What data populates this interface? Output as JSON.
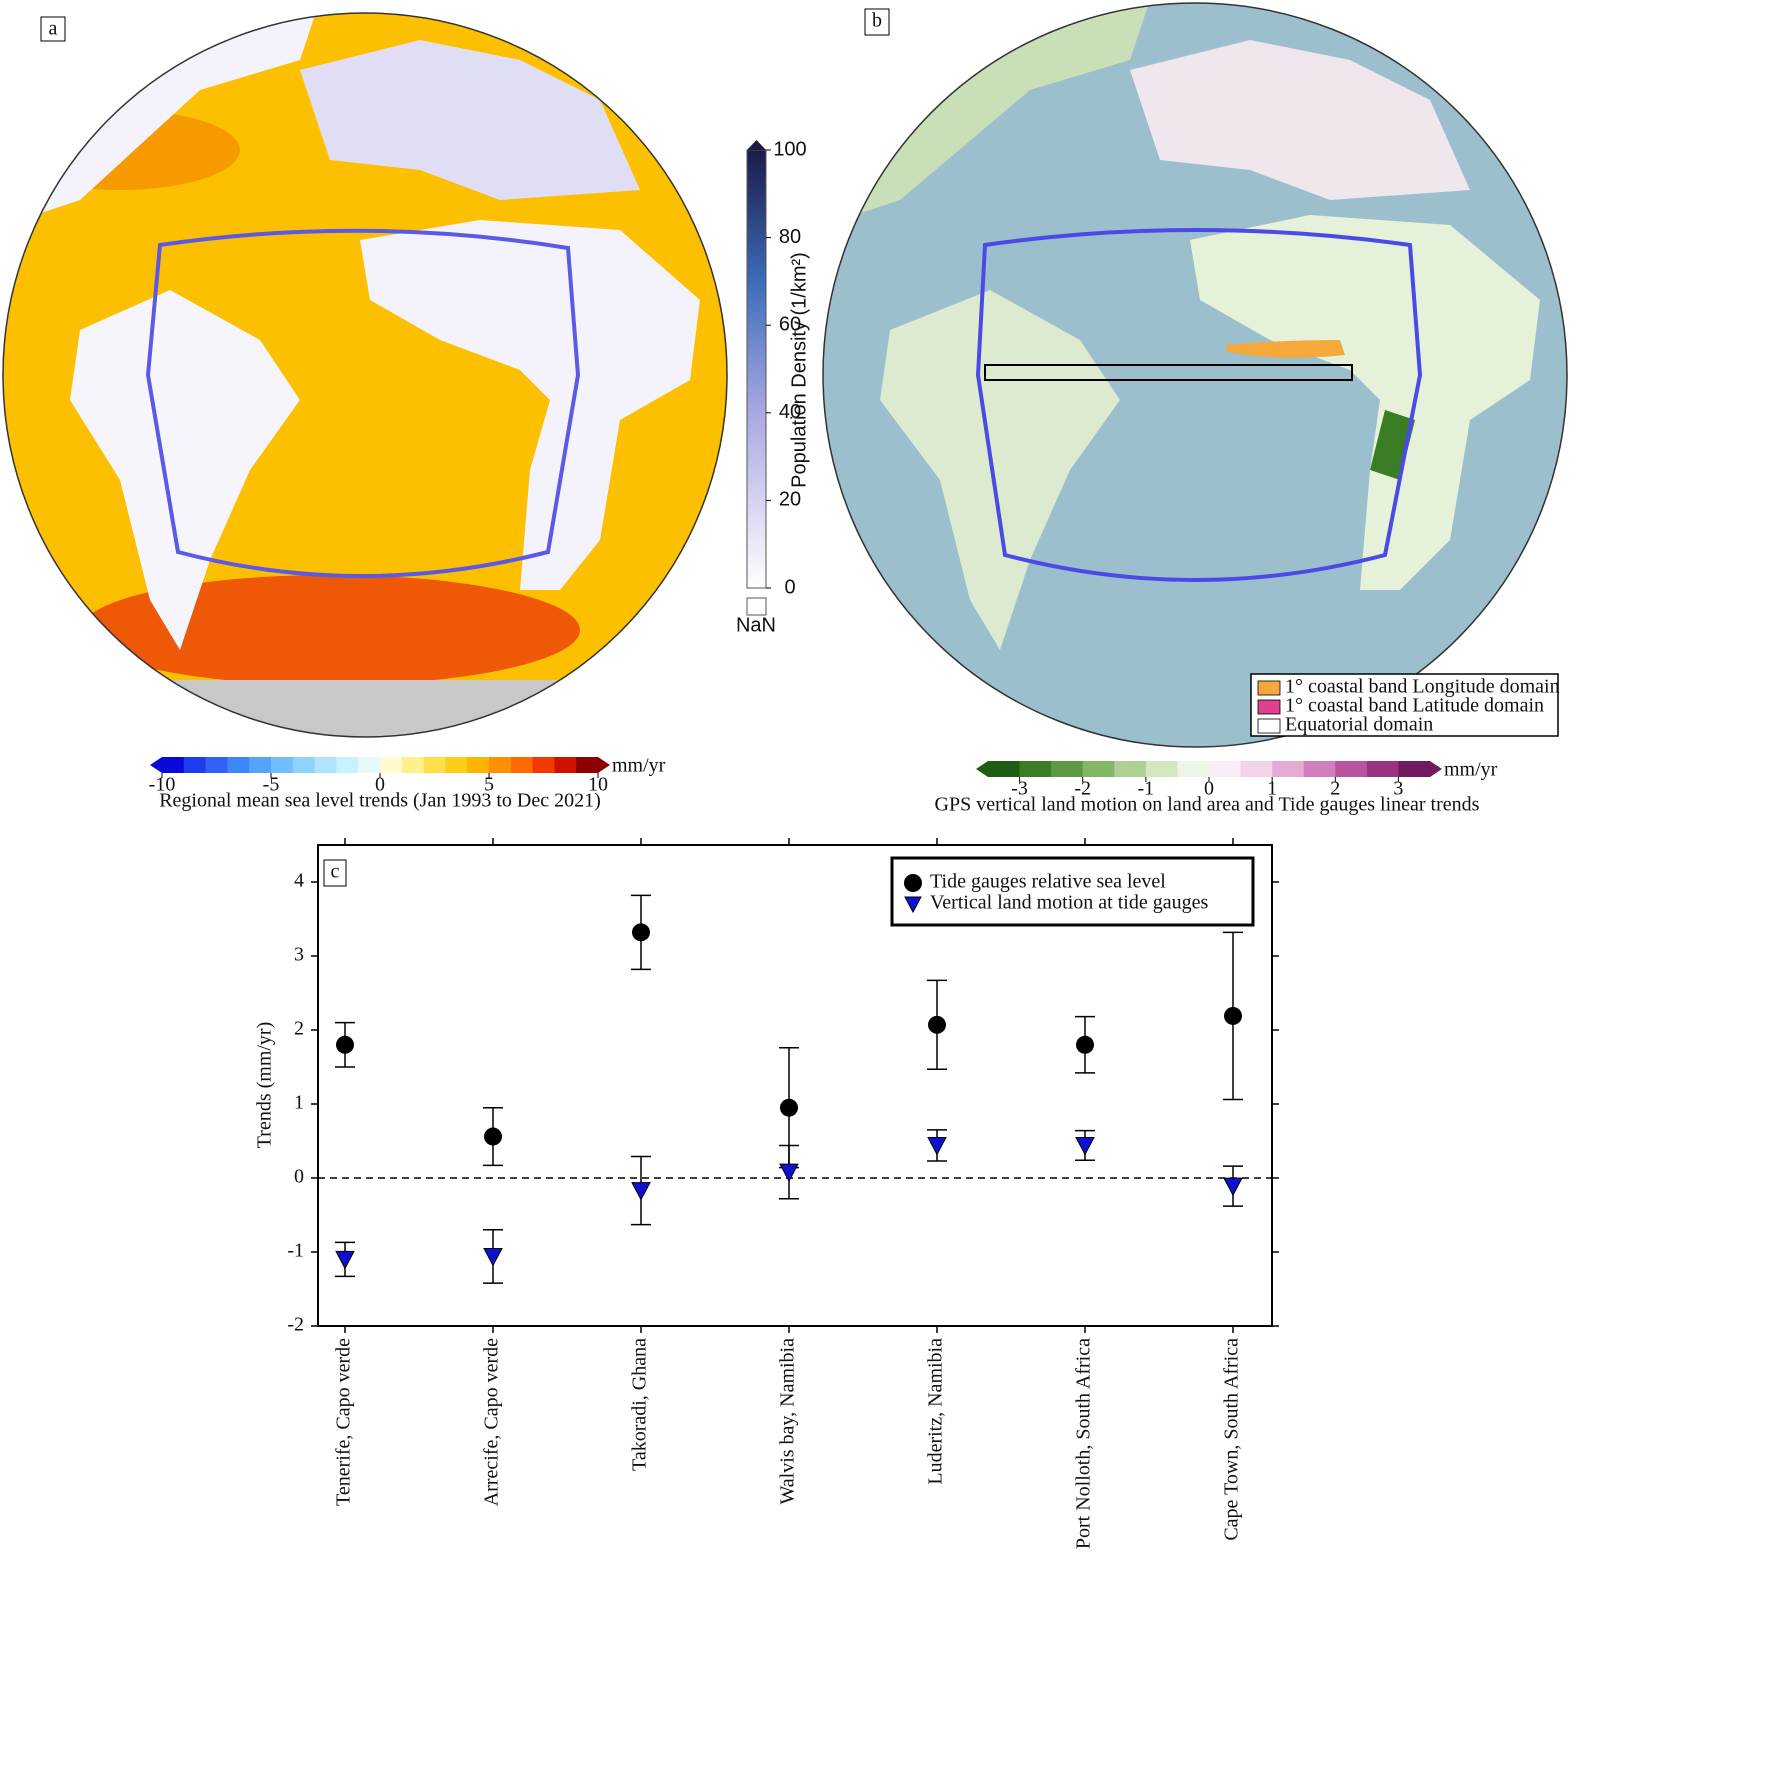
{
  "panel_a": {
    "label": "a",
    "colorbar": {
      "label": "Regional mean sea level trends (Jan 1993 to Dec 2021)",
      "unit": "mm/yr",
      "lim": [
        -10,
        10
      ],
      "ticks": [
        -10,
        -5,
        0,
        5,
        10
      ],
      "colors": [
        "#0a0ad8",
        "#1f3df0",
        "#2f62f5",
        "#3f86f8",
        "#55a3fa",
        "#72bdfb",
        "#8fd3fc",
        "#aee4fc",
        "#c9f1fd",
        "#e6fafe",
        "#fffbd0",
        "#ffef8a",
        "#ffdf4d",
        "#ffcc1a",
        "#ffb400",
        "#ff9000",
        "#ff6a00",
        "#f03a00",
        "#d01000",
        "#8b0000"
      ]
    },
    "population_colorbar": {
      "label": "Population Density (1/km²)",
      "lim": [
        0,
        100
      ],
      "ticks": [
        0,
        20,
        40,
        60,
        80,
        100
      ],
      "nan_label": "NaN"
    }
  },
  "panel_b": {
    "label": "b",
    "legend": [
      {
        "label": "1° coastal band Longitude domain",
        "color": "#f5a93a"
      },
      {
        "label": "1° coastal band Latitude domain",
        "color": "#e0408f"
      },
      {
        "label": "Equatorial domain",
        "color": "#ffffff"
      }
    ],
    "colorbar": {
      "label": "GPS vertical land motion on land area and Tide gauges linear trends",
      "unit": "mm/yr",
      "lim": [
        -3.5,
        3.5
      ],
      "ticks": [
        -3,
        -2,
        -1,
        0,
        1,
        2,
        3
      ],
      "colors": [
        "#1e5e12",
        "#3a7d25",
        "#5e9a44",
        "#84b668",
        "#aed191",
        "#d2e7c0",
        "#eef5e8",
        "#f8eef5",
        "#f2d3e8",
        "#e4acd4",
        "#d07fbc",
        "#b8559f",
        "#983583",
        "#711a5e"
      ]
    }
  },
  "chart_data": {
    "type": "errorbar",
    "label": "c",
    "ylabel": "Trends (mm/yr)",
    "categories": [
      "Tenerife, Capo verde",
      "Arrecife, Capo verde",
      "Takoradi, Ghana",
      "Walvis bay, Namibia",
      "Luderitz, Namibia",
      "Port Nolloth, South Africa",
      "Cape Town, South Africa"
    ],
    "series": [
      {
        "name": "Tide gauges relative sea level",
        "color": "#000000",
        "marker": "circle",
        "values": [
          1.8,
          0.56,
          3.32,
          0.95,
          2.07,
          1.8,
          2.19
        ],
        "errors": [
          0.3,
          0.39,
          0.5,
          0.81,
          0.6,
          0.38,
          1.13
        ]
      },
      {
        "name": "Vertical land motion at tide gauges",
        "color": "#1010d0",
        "marker": "triangle-down",
        "values": [
          -1.1,
          -1.06,
          -0.17,
          0.08,
          0.44,
          0.44,
          -0.11
        ],
        "errors": [
          0.23,
          0.36,
          0.46,
          0.36,
          0.21,
          0.2,
          0.27
        ]
      }
    ],
    "hline": 0,
    "ylim": [
      -2,
      4.5
    ],
    "yticks": [
      -2,
      -1,
      0,
      1,
      2,
      3,
      4
    ]
  }
}
